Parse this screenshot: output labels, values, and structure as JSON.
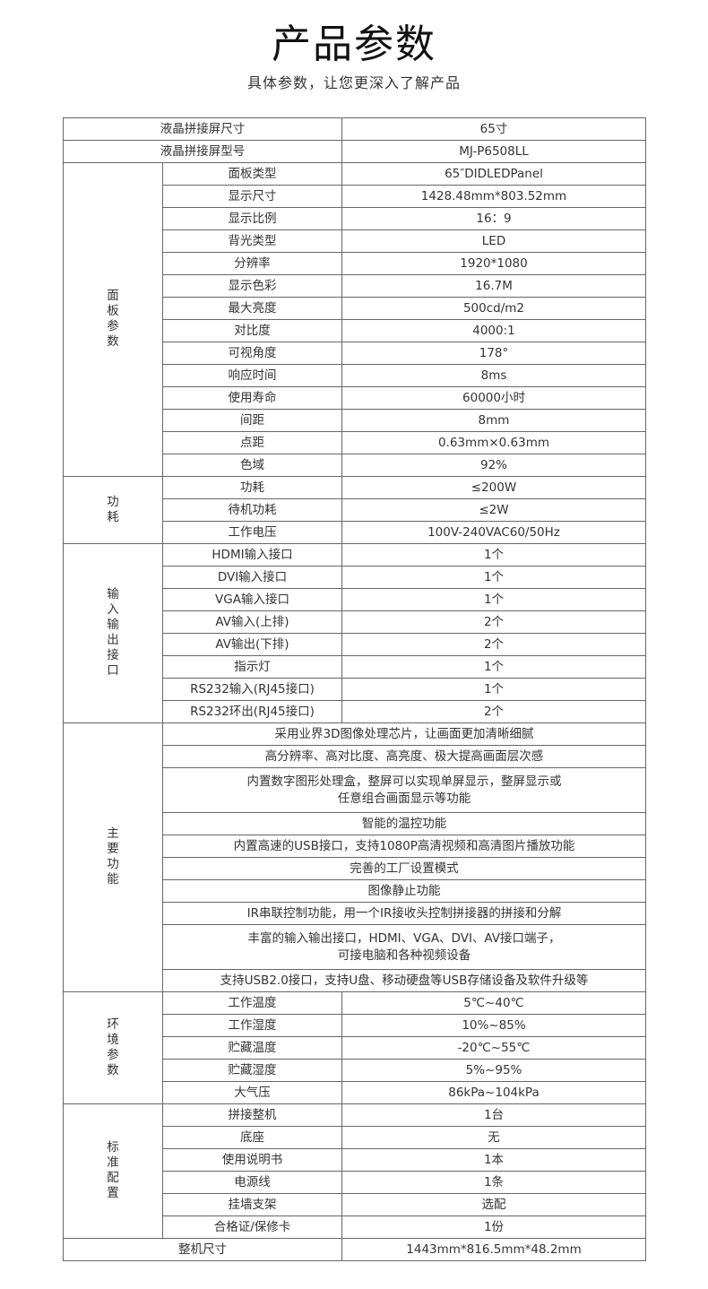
{
  "header": {
    "title": "产品参数",
    "subtitle": "具体参数，让您更深入了解产品"
  },
  "spec_table": {
    "top_rows": [
      {
        "label": "液晶拼接屏尺寸",
        "value": "65寸"
      },
      {
        "label": "液晶拼接屏型号",
        "value": "MJ-P6508LL"
      }
    ],
    "groups": [
      {
        "name": "面板参数",
        "rows": [
          {
            "label": "面板类型",
            "value": "65″DIDLEDPanel"
          },
          {
            "label": "显示尺寸",
            "value": "1428.48mm*803.52mm"
          },
          {
            "label": "显示比例",
            "value": "16：9"
          },
          {
            "label": "背光类型",
            "value": "LED"
          },
          {
            "label": "分辨率",
            "value": "1920*1080"
          },
          {
            "label": "显示色彩",
            "value": "16.7M"
          },
          {
            "label": "最大亮度",
            "value": "500cd/m2"
          },
          {
            "label": "对比度",
            "value": "4000:1"
          },
          {
            "label": "可视角度",
            "value": "178°"
          },
          {
            "label": "响应时间",
            "value": "8ms"
          },
          {
            "label": "使用寿命",
            "value": "60000小时"
          },
          {
            "label": "间距",
            "value": "8mm"
          },
          {
            "label": "点距",
            "value": "0.63mm×0.63mm"
          },
          {
            "label": "色域",
            "value": "92%"
          }
        ]
      },
      {
        "name": "功耗",
        "rows": [
          {
            "label": "功耗",
            "value": "≤200W"
          },
          {
            "label": "待机功耗",
            "value": "≤2W"
          },
          {
            "label": "工作电压",
            "value": "100V-240VAC60/50Hz"
          }
        ]
      },
      {
        "name": "输入输出接口",
        "rows": [
          {
            "label": "HDMI输入接口",
            "value": "1个"
          },
          {
            "label": "DVI输入接口",
            "value": "1个"
          },
          {
            "label": "VGA输入接口",
            "value": "1个"
          },
          {
            "label": "AV输入(上排)",
            "value": "2个"
          },
          {
            "label": "AV输出(下排)",
            "value": "2个"
          },
          {
            "label": "指示灯",
            "value": "1个"
          },
          {
            "label": "RS232输入(RJ45接口)",
            "value": "1个"
          },
          {
            "label": "RS232环出(RJ45接口)",
            "value": "2个"
          }
        ]
      },
      {
        "name": "主要功能",
        "features": [
          [
            "采用业界3D图像处理芯片，让画面更加清晰细腻"
          ],
          [
            "高分辨率、高对比度、高亮度、极大提高画面层次感"
          ],
          [
            "内置数字图形处理盒，整屏可以实现单屏显示，整屏显示或",
            "任意组合画面显示等功能"
          ],
          [
            "智能的温控功能"
          ],
          [
            "内置高速的USB接口，支持1080P高清视频和高清图片播放功能"
          ],
          [
            "完善的工厂设置模式"
          ],
          [
            "图像静止功能"
          ],
          [
            "IR串联控制功能，用一个IR接收头控制拼接器的拼接和分解"
          ],
          [
            "丰富的输入输出接口，HDMI、VGA、DVI、AV接口端子，",
            "可接电脑和各种视频设备"
          ],
          [
            "支持USB2.0接口，支持U盘、移动硬盘等USB存储设备及软件升级等"
          ]
        ]
      },
      {
        "name": "环境参数",
        "rows": [
          {
            "label": "工作温度",
            "value": "5℃~40℃"
          },
          {
            "label": "工作湿度",
            "value": "10%~85%"
          },
          {
            "label": "贮藏温度",
            "value": "-20℃~55℃"
          },
          {
            "label": "贮藏湿度",
            "value": "5%~95%"
          },
          {
            "label": "大气压",
            "value": "86kPa~104kPa"
          }
        ]
      },
      {
        "name": "标准配置",
        "rows": [
          {
            "label": "拼接整机",
            "value": "1台"
          },
          {
            "label": "底座",
            "value": "无"
          },
          {
            "label": "使用说明书",
            "value": "1本"
          },
          {
            "label": "电源线",
            "value": "1条"
          },
          {
            "label": "挂墙支架",
            "value": "选配"
          },
          {
            "label": "合格证/保修卡",
            "value": "1份"
          }
        ]
      }
    ],
    "bottom_rows": [
      {
        "label": "整机尺寸",
        "value": "1443mm*816.5mm*48.2mm"
      }
    ]
  }
}
